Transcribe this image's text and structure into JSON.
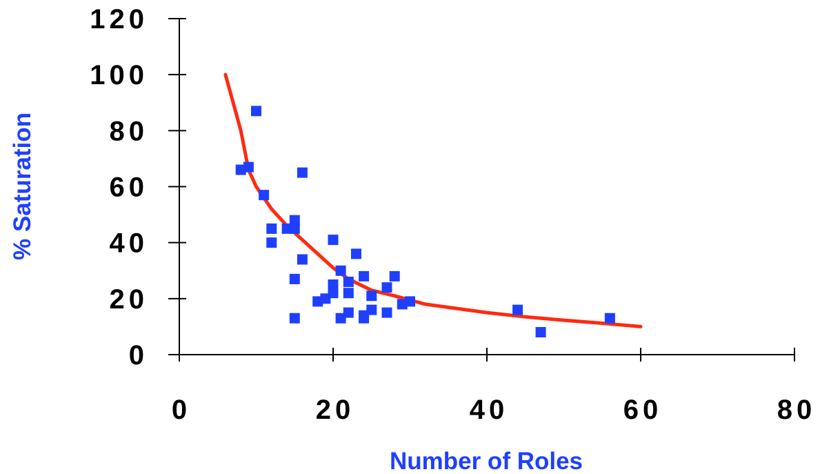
{
  "chart_data": {
    "type": "scatter",
    "xlabel": "Number of Roles",
    "ylabel": "% Saturation",
    "xlim": [
      0,
      80
    ],
    "ylim": [
      0,
      120
    ],
    "x_ticks": [
      0,
      20,
      40,
      60,
      80
    ],
    "y_ticks": [
      0,
      20,
      40,
      60,
      80,
      100,
      120
    ],
    "grid": false,
    "legend": "none",
    "colors": {
      "points": "#1f3fff",
      "trend": "#ff2a10",
      "labels": "#1f3fff"
    },
    "series": [
      {
        "kind": "points",
        "points": [
          [
            8,
            66
          ],
          [
            9,
            67
          ],
          [
            10,
            87
          ],
          [
            11,
            57
          ],
          [
            12,
            45
          ],
          [
            12,
            40
          ],
          [
            14,
            45
          ],
          [
            15,
            48
          ],
          [
            15,
            45
          ],
          [
            15,
            27
          ],
          [
            15,
            13
          ],
          [
            16,
            65
          ],
          [
            16,
            34
          ],
          [
            18,
            19
          ],
          [
            19,
            20
          ],
          [
            20,
            41
          ],
          [
            20,
            25
          ],
          [
            20,
            22
          ],
          [
            21,
            30
          ],
          [
            21,
            13
          ],
          [
            22,
            26
          ],
          [
            22,
            22
          ],
          [
            22,
            15
          ],
          [
            23,
            36
          ],
          [
            24,
            28
          ],
          [
            24,
            14
          ],
          [
            24,
            13
          ],
          [
            25,
            21
          ],
          [
            25,
            16
          ],
          [
            27,
            24
          ],
          [
            27,
            15
          ],
          [
            28,
            28
          ],
          [
            29,
            18
          ],
          [
            30,
            19
          ],
          [
            44,
            16
          ],
          [
            47,
            8
          ],
          [
            56,
            13
          ]
        ]
      },
      {
        "kind": "trend",
        "points": [
          [
            6,
            100
          ],
          [
            7,
            90
          ],
          [
            8,
            80
          ],
          [
            9,
            66
          ],
          [
            10,
            60
          ],
          [
            11,
            56
          ],
          [
            12,
            52
          ],
          [
            14,
            46
          ],
          [
            16,
            41
          ],
          [
            18,
            36
          ],
          [
            20,
            31
          ],
          [
            22,
            27
          ],
          [
            25,
            23
          ],
          [
            28,
            21
          ],
          [
            32,
            18
          ],
          [
            36,
            16.5
          ],
          [
            40,
            15
          ],
          [
            45,
            13.5
          ],
          [
            50,
            12.3
          ],
          [
            55,
            11.2
          ],
          [
            60,
            10
          ]
        ]
      }
    ]
  }
}
